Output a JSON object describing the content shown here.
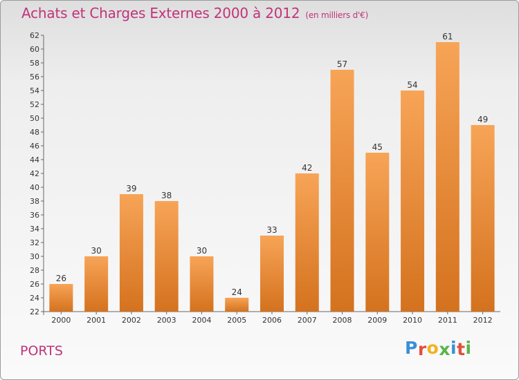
{
  "header": {
    "title": "Achats et Charges Externes 2000 à 2012",
    "unit": "(en milliers d'€)"
  },
  "commune": "PORTS",
  "logo": {
    "letters": [
      "P",
      "r",
      "o",
      "x",
      "i",
      "t",
      "i"
    ],
    "colors": [
      "#3a8fd6",
      "#e2503c",
      "#f0b320",
      "#59b548",
      "#3a8fd6",
      "#e2503c",
      "#59b548"
    ]
  },
  "colors": {
    "title": "#c0337a",
    "bar_top": "#f7a457",
    "bar_bottom": "#d4721e"
  },
  "chart_data": {
    "type": "bar",
    "title": "Achats et Charges Externes 2000 à 2012",
    "subtitle": "(en milliers d'€)",
    "categories": [
      "2000",
      "2001",
      "2002",
      "2003",
      "2004",
      "2005",
      "2006",
      "2007",
      "2008",
      "2009",
      "2010",
      "2011",
      "2012"
    ],
    "values": [
      26,
      30,
      39,
      38,
      30,
      24,
      33,
      42,
      57,
      45,
      54,
      61,
      49
    ],
    "ylim": [
      22,
      62
    ],
    "yticks": [
      22,
      24,
      26,
      28,
      30,
      32,
      34,
      36,
      38,
      40,
      42,
      44,
      46,
      48,
      50,
      52,
      54,
      56,
      58,
      60,
      62
    ],
    "grid": false,
    "legend": "none"
  }
}
